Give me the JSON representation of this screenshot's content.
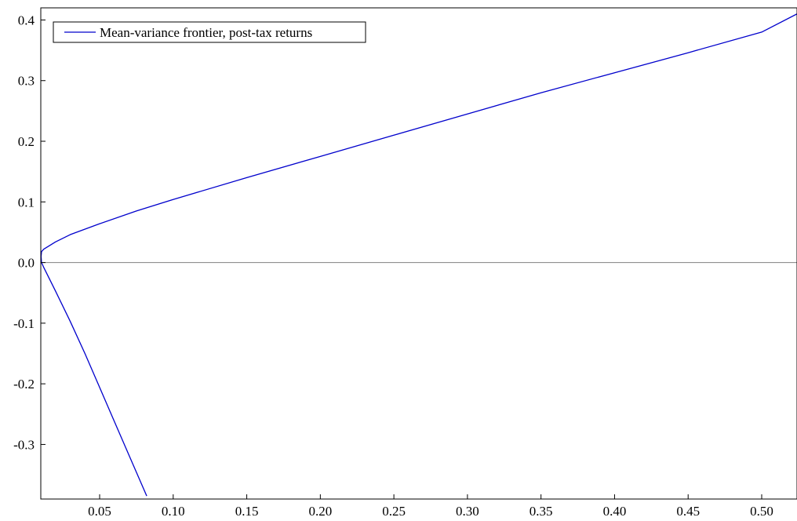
{
  "chart_data": {
    "type": "line",
    "title": "",
    "xlabel": "",
    "ylabel": "",
    "xlim": [
      0.01,
      0.524
    ],
    "ylim": [
      -0.39,
      0.42
    ],
    "xticks": [
      0.05,
      0.1,
      0.15,
      0.2,
      0.25,
      0.3,
      0.35,
      0.4,
      0.45,
      0.5
    ],
    "xtick_labels": [
      "0.05",
      "0.10",
      "0.15",
      "0.20",
      "0.25",
      "0.30",
      "0.35",
      "0.40",
      "0.45",
      "0.50"
    ],
    "yticks": [
      0.4,
      0.3,
      0.2,
      0.1,
      0.0,
      -0.1,
      -0.2,
      -0.3
    ],
    "ytick_labels": [
      "0.4",
      "0.3",
      "0.2",
      "0.1",
      "0.0",
      "-0.1",
      "-0.2",
      "-0.3"
    ],
    "zero_line": true,
    "grid": false,
    "legend_position": "top-left",
    "series": [
      {
        "name": "Mean-variance frontier, post-tax returns",
        "color": "#0000cc",
        "x": [
          0.082,
          0.07,
          0.06,
          0.05,
          0.04,
          0.03,
          0.02,
          0.012,
          0.0105,
          0.0102,
          0.0105,
          0.012,
          0.02,
          0.03,
          0.05,
          0.075,
          0.1,
          0.15,
          0.2,
          0.25,
          0.3,
          0.35,
          0.4,
          0.45,
          0.5,
          0.524
        ],
        "y": [
          -0.385,
          -0.318,
          -0.262,
          -0.206,
          -0.15,
          -0.097,
          -0.047,
          -0.008,
          0.0,
          0.01,
          0.018,
          0.022,
          0.034,
          0.046,
          0.064,
          0.085,
          0.104,
          0.14,
          0.175,
          0.21,
          0.245,
          0.28,
          0.313,
          0.346,
          0.38,
          0.41
        ]
      }
    ]
  }
}
